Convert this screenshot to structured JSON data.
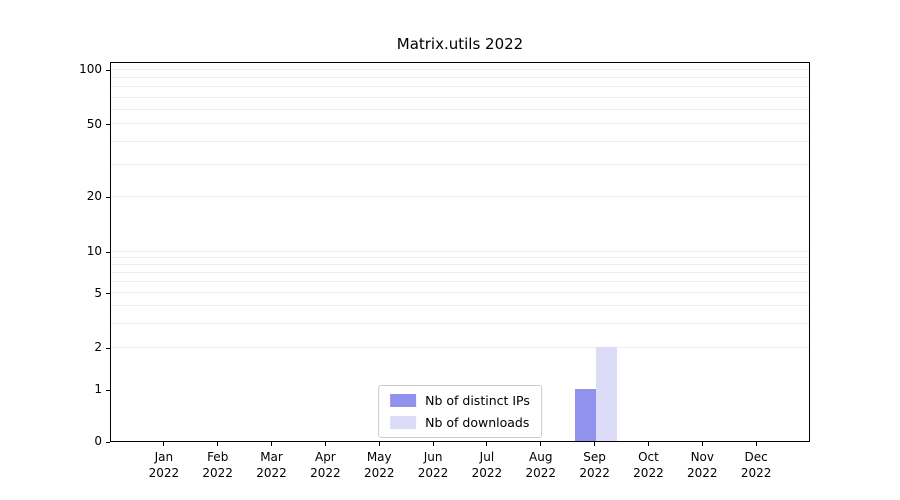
{
  "chart_data": {
    "type": "bar",
    "title": "Matrix.utils 2022",
    "categories": [
      "Jan",
      "Feb",
      "Mar",
      "Apr",
      "May",
      "Jun",
      "Jul",
      "Aug",
      "Sep",
      "Oct",
      "Nov",
      "Dec"
    ],
    "category_year": "2022",
    "series": [
      {
        "name": "Nb of distinct IPs",
        "color": "#9191ee",
        "values": [
          0,
          0,
          0,
          0,
          0,
          0,
          0,
          0,
          1,
          0,
          0,
          0
        ]
      },
      {
        "name": "Nb of downloads",
        "color": "#dcdcf9",
        "values": [
          0,
          0,
          0,
          0,
          0,
          0,
          0,
          0,
          2,
          0,
          0,
          0
        ]
      }
    ],
    "yscale": "symlog",
    "yticks": [
      0,
      1,
      2,
      5,
      10,
      20,
      50,
      100
    ],
    "minor_gridlines": [
      2,
      3,
      4,
      5,
      6,
      7,
      8,
      9,
      10,
      20,
      30,
      40,
      50,
      60,
      70,
      80,
      90,
      100
    ],
    "ylim": [
      0,
      110
    ],
    "grid": "horizontal-minor",
    "legend_position": "lower center",
    "colors": {
      "axis": "#000000",
      "grid": "#ededed",
      "legend_border": "#cccccc"
    }
  }
}
